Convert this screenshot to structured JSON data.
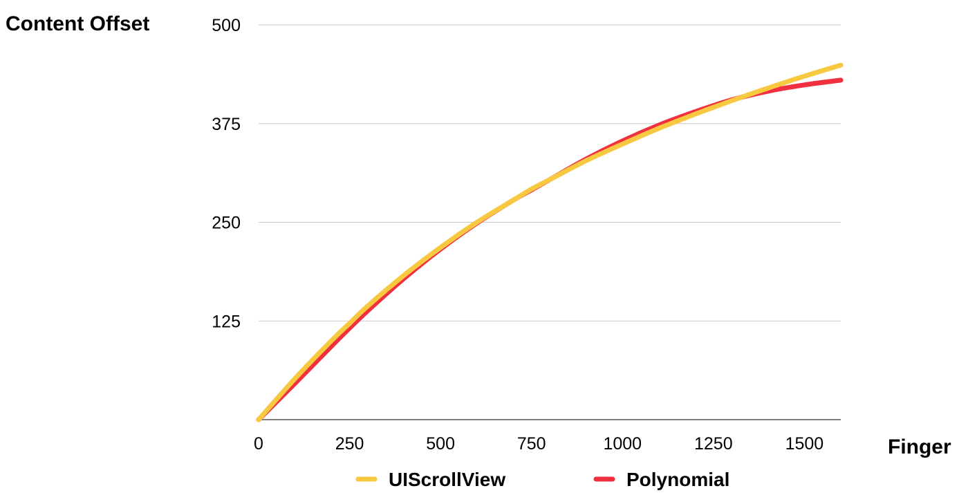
{
  "chart_data": {
    "type": "line",
    "title": "",
    "ylabel": "Content Offset",
    "xlabel": "Finger",
    "xlim": [
      0,
      1600
    ],
    "ylim": [
      0,
      500
    ],
    "x_ticks": [
      0,
      250,
      500,
      750,
      1000,
      1250,
      1500
    ],
    "y_ticks": [
      125,
      250,
      375,
      500
    ],
    "grid": "horizontal",
    "legend_position": "bottom",
    "series": [
      {
        "name": "UIScrollView",
        "color": "#F8C940",
        "x": [
          0,
          100,
          200,
          250,
          300,
          400,
          500,
          600,
          700,
          750,
          800,
          900,
          1000,
          1100,
          1200,
          1300,
          1400,
          1500,
          1600
        ],
        "y": [
          0,
          52,
          100,
          122,
          144,
          183,
          218,
          250,
          278,
          292,
          304,
          328,
          349,
          369,
          387,
          404,
          420,
          435,
          449
        ]
      },
      {
        "name": "Polynomial",
        "color": "#F0303E",
        "x": [
          0,
          100,
          200,
          250,
          300,
          400,
          500,
          600,
          700,
          750,
          800,
          900,
          1000,
          1100,
          1200,
          1300,
          1400,
          1500,
          1600
        ],
        "y": [
          0,
          46,
          93,
          116,
          138,
          179,
          216,
          249,
          278,
          291,
          304,
          330,
          353,
          373,
          390,
          405,
          416,
          424,
          430
        ]
      }
    ]
  }
}
